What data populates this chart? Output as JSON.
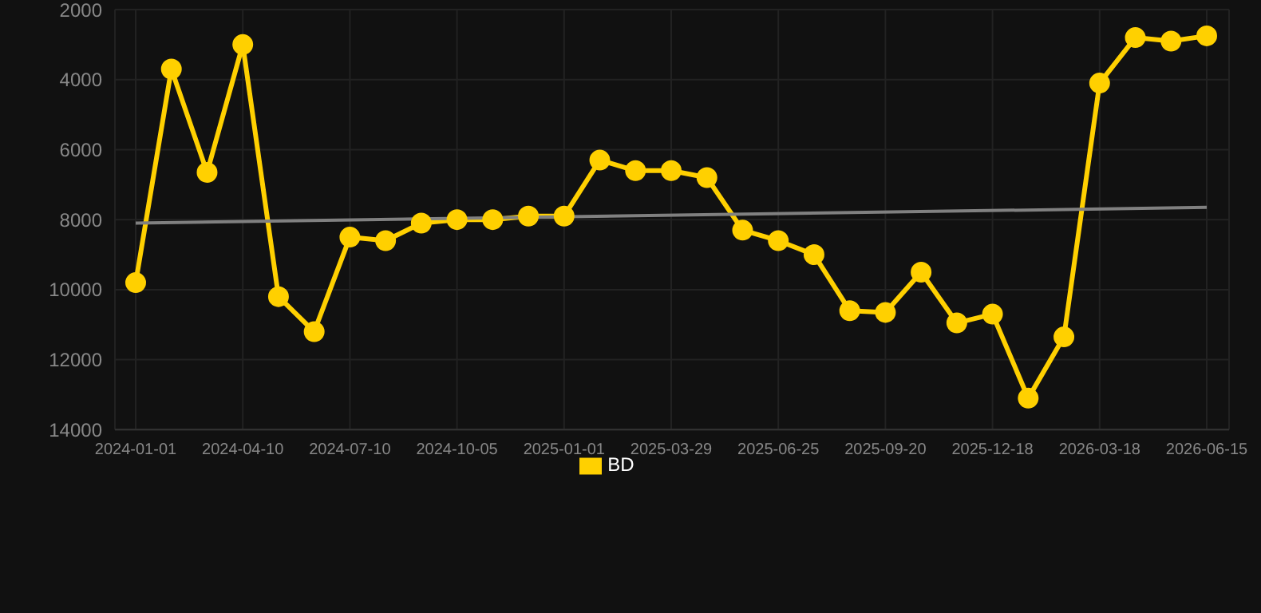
{
  "chart_data": {
    "type": "line",
    "categories": [
      "2024-01-01",
      null,
      null,
      "2024-04-10",
      null,
      null,
      "2024-07-10",
      null,
      null,
      "2024-10-05",
      null,
      null,
      "2025-01-01",
      null,
      null,
      "2025-03-29",
      null,
      null,
      "2025-06-25",
      null,
      null,
      "2025-09-20",
      null,
      null,
      "2025-12-18",
      null,
      null,
      "2026-03-18",
      null,
      null,
      "2026-06-15"
    ],
    "series": [
      {
        "name": "BD",
        "color": "#ffd000",
        "marker": "circle",
        "values": [
          9800,
          3700,
          6650,
          3000,
          10200,
          11200,
          8500,
          8600,
          8100,
          8000,
          8000,
          7900,
          7900,
          6300,
          6600,
          6600,
          6800,
          8300,
          8600,
          9000,
          10600,
          10650,
          9500,
          10950,
          10700,
          13100,
          11350,
          4100,
          2800,
          2900,
          2750
        ]
      },
      {
        "type": "line",
        "color": "#808080",
        "marker": "none",
        "values": [
          8100,
          null,
          null,
          null,
          null,
          null,
          null,
          null,
          null,
          null,
          null,
          null,
          null,
          null,
          null,
          null,
          null,
          null,
          null,
          null,
          null,
          null,
          null,
          null,
          null,
          null,
          null,
          null,
          null,
          null,
          7650
        ]
      }
    ],
    "ylim": [
      14000,
      2000
    ],
    "yticks": [
      2000,
      4000,
      6000,
      8000,
      10000,
      12000,
      14000
    ],
    "grid": true,
    "legend": "bottom"
  }
}
